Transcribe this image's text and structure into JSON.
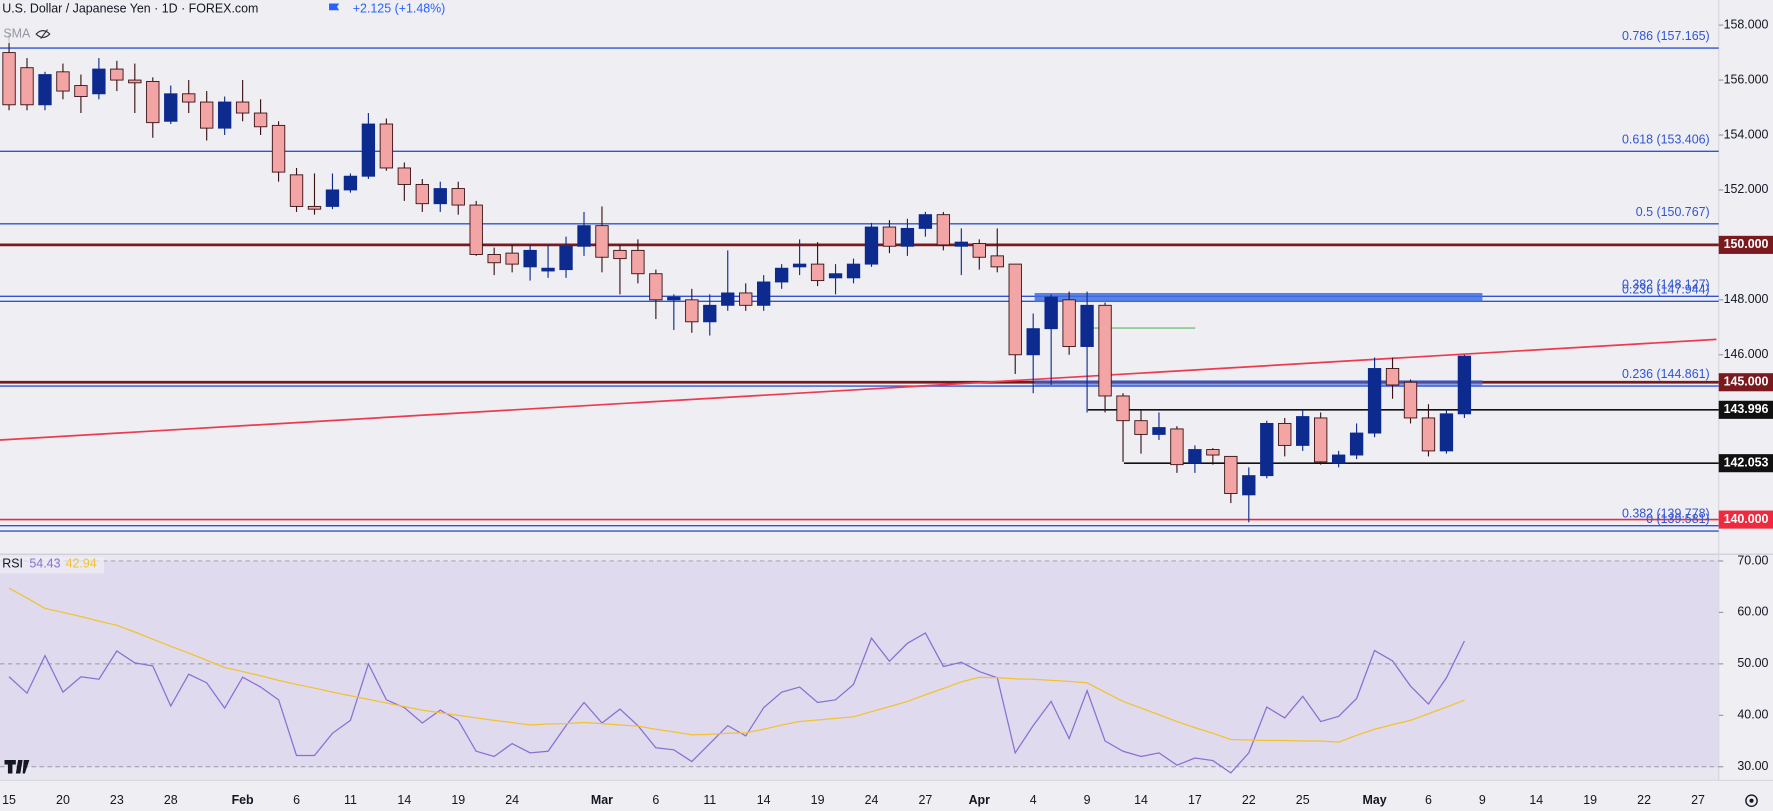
{
  "chart_data": [
    {
      "type": "candlestick",
      "title": "U.S. Dollar / Japanese Yen · 1D · FOREX.com",
      "change": "+2.125 (+1.48%)",
      "indicator": "SMA",
      "up_color": "#0d2b8e",
      "down_color": "#f3a5a5",
      "categories": [
        "15",
        null,
        null,
        "20",
        null,
        null,
        "23",
        null,
        null,
        "28",
        null,
        null,
        null,
        "Feb",
        null,
        null,
        "6",
        null,
        null,
        "11",
        null,
        null,
        "14",
        null,
        null,
        "19",
        null,
        null,
        "24",
        null,
        null,
        null,
        null,
        "Mar",
        null,
        null,
        "6",
        null,
        null,
        "11",
        null,
        null,
        "14",
        null,
        null,
        "19",
        null,
        null,
        "24",
        null,
        null,
        "27",
        null,
        null,
        "Apr",
        null,
        null,
        "4",
        null,
        null,
        "9",
        null,
        null,
        "14",
        null,
        null,
        "17",
        null,
        null,
        "22",
        null,
        null,
        "25",
        null,
        null,
        null,
        "May",
        null,
        null,
        "6",
        null,
        null,
        "9",
        null,
        null,
        "14",
        null,
        null,
        "19",
        null,
        null,
        "22",
        null,
        null,
        "27"
      ],
      "open": [
        157.0,
        156.45,
        155.1,
        156.3,
        155.8,
        155.5,
        156.4,
        156.0,
        155.95,
        154.5,
        155.5,
        155.2,
        154.25,
        155.2,
        154.8,
        154.35,
        152.55,
        151.4,
        151.4,
        152.0,
        152.5,
        154.4,
        152.8,
        152.2,
        151.5,
        152.05,
        151.45,
        149.65,
        149.7,
        149.2,
        149.05,
        149.1,
        149.95,
        150.7,
        149.8,
        149.8,
        148.95,
        148.0,
        148.0,
        147.2,
        147.8,
        148.25,
        147.8,
        148.65,
        149.2,
        149.3,
        148.8,
        148.8,
        149.3,
        150.65,
        149.95,
        150.6,
        151.1,
        149.95,
        150.05,
        149.6,
        149.3,
        146.0,
        146.95,
        148.0,
        146.3,
        147.8,
        144.5,
        143.6,
        143.1,
        143.3,
        142.05,
        142.55,
        142.3,
        140.9,
        141.6,
        143.5,
        142.7,
        143.7,
        142.05,
        142.35,
        143.15,
        145.5,
        145.0,
        143.7,
        142.5,
        143.85,
        null,
        null,
        null,
        null,
        null,
        null,
        null,
        null,
        null,
        null,
        null,
        null,
        null
      ],
      "high": [
        157.7,
        156.8,
        156.3,
        156.6,
        156.2,
        156.8,
        156.7,
        156.6,
        156.1,
        155.8,
        156.0,
        155.6,
        155.4,
        156.0,
        155.3,
        154.5,
        152.8,
        152.6,
        152.6,
        152.6,
        154.8,
        154.6,
        153.0,
        152.4,
        152.3,
        152.3,
        151.6,
        149.9,
        150.0,
        150.0,
        150.0,
        150.3,
        151.2,
        151.4,
        150.0,
        150.2,
        149.1,
        148.2,
        148.4,
        148.2,
        149.8,
        148.6,
        148.9,
        149.3,
        150.2,
        150.1,
        149.3,
        149.5,
        150.8,
        150.9,
        150.95,
        151.2,
        151.2,
        150.6,
        150.2,
        150.6,
        149.3,
        147.5,
        148.2,
        148.3,
        148.3,
        147.9,
        144.6,
        144.0,
        143.9,
        143.4,
        142.7,
        142.6,
        142.3,
        141.9,
        143.6,
        143.7,
        144.0,
        143.9,
        142.5,
        143.5,
        145.9,
        145.9,
        145.1,
        144.2,
        144.0,
        146.0,
        null,
        null,
        null,
        null,
        null,
        null,
        null,
        null,
        null,
        null,
        null,
        null,
        null
      ],
      "low": [
        154.9,
        154.9,
        154.9,
        155.3,
        154.8,
        155.3,
        155.6,
        154.8,
        153.9,
        154.4,
        154.8,
        153.8,
        154.0,
        154.5,
        154.0,
        152.3,
        151.2,
        151.1,
        151.3,
        151.9,
        152.4,
        152.7,
        151.6,
        151.2,
        151.2,
        151.1,
        149.6,
        148.9,
        149.0,
        148.7,
        148.8,
        148.8,
        149.6,
        149.0,
        148.2,
        148.6,
        147.3,
        146.9,
        146.8,
        146.7,
        147.6,
        147.6,
        147.6,
        148.4,
        148.9,
        148.5,
        148.2,
        148.6,
        149.2,
        149.7,
        149.6,
        150.3,
        149.8,
        148.9,
        149.1,
        149.0,
        145.3,
        144.6,
        144.9,
        146.0,
        143.9,
        143.9,
        142.1,
        142.4,
        142.9,
        141.7,
        141.7,
        142.0,
        140.6,
        139.9,
        141.5,
        142.3,
        142.5,
        142.0,
        141.9,
        142.2,
        143.0,
        144.4,
        143.5,
        142.3,
        142.4,
        143.7,
        null,
        null,
        null,
        null,
        null,
        null,
        null,
        null,
        null,
        null,
        null,
        null,
        null
      ],
      "close": [
        155.1,
        155.1,
        156.2,
        155.6,
        155.4,
        156.4,
        156.0,
        155.9,
        154.45,
        155.5,
        155.2,
        154.25,
        155.2,
        154.8,
        154.3,
        152.65,
        151.4,
        151.3,
        152.0,
        152.5,
        154.4,
        152.8,
        152.2,
        151.5,
        152.05,
        151.45,
        149.65,
        149.35,
        149.3,
        149.8,
        149.15,
        149.95,
        150.7,
        149.55,
        149.5,
        148.95,
        148.0,
        148.1,
        147.2,
        147.8,
        148.25,
        147.8,
        148.65,
        149.15,
        149.3,
        148.7,
        148.95,
        149.3,
        150.65,
        149.95,
        150.6,
        151.1,
        150.0,
        150.1,
        149.55,
        149.2,
        146.0,
        146.95,
        148.1,
        146.3,
        147.8,
        144.5,
        143.6,
        143.1,
        143.35,
        142.0,
        142.55,
        142.35,
        140.95,
        141.6,
        143.5,
        142.7,
        143.75,
        142.1,
        142.35,
        143.15,
        145.5,
        144.9,
        143.7,
        142.5,
        143.85,
        145.95,
        null,
        null,
        null,
        null,
        null,
        null,
        null,
        null,
        null,
        null,
        null,
        null,
        null
      ],
      "ylim": [
        138.74,
        158.91
      ],
      "yticks": [
        {
          "value": 158,
          "label": "158.000"
        },
        {
          "value": 156,
          "label": "156.000"
        },
        {
          "value": 154,
          "label": "154.000"
        },
        {
          "value": 152,
          "label": "152.000"
        },
        {
          "value": 148,
          "label": "148.000"
        },
        {
          "value": 146,
          "label": "146.000"
        }
      ],
      "fib_levels": [
        {
          "value": 157.165,
          "label": "0.786 (157.165)"
        },
        {
          "value": 153.406,
          "label": "0.618 (153.406)"
        },
        {
          "value": 150.767,
          "label": "0.5 (150.767)"
        },
        {
          "value": 148.127,
          "label": "0.382 (148.127)"
        },
        {
          "value": 147.944,
          "label": "0.236 (147.944)"
        },
        {
          "value": 144.861,
          "label": "0.236 (144.861)"
        },
        {
          "value": 139.581,
          "label": "0 (139.581)"
        },
        {
          "value": 139.778,
          "label": "0.382 (139.778)"
        }
      ],
      "fib_color": "#2f55d4",
      "levels": [
        {
          "value": 150,
          "label": "150.000",
          "color": "#7a1a1f"
        },
        {
          "value": 145,
          "label": "145.000",
          "color": "#7a1a1f"
        },
        {
          "value": 143.996,
          "label": "143.996",
          "color": "#111111"
        },
        {
          "value": 142.053,
          "label": "142.053",
          "color": "#111111"
        },
        {
          "value": 140,
          "label": "140.000",
          "color": "#f0293e"
        }
      ]
    },
    {
      "type": "line",
      "title": "RSI",
      "series": [
        {
          "color": "#8a6fd1",
          "values": [
            47.5,
            44.3,
            51.6,
            44.5,
            47.5,
            47.0,
            52.5,
            50.2,
            49.6,
            41.8,
            48.0,
            46.3,
            41.4,
            47.4,
            45.5,
            43.0,
            32.2,
            32.2,
            36.5,
            39.0,
            50.0,
            43.0,
            41.5,
            38.5,
            41.0,
            39.0,
            33.0,
            32.0,
            34.5,
            32.7,
            33.0,
            38.0,
            42.5,
            38.5,
            41.2,
            38.0,
            33.7,
            33.3,
            31.0,
            34.5,
            38.0,
            36.0,
            41.5,
            44.5,
            45.5,
            42.5,
            43.0,
            46.0,
            55.0,
            50.5,
            54.0,
            56.0,
            49.5,
            50.3,
            48.5,
            47.3,
            32.7,
            38.0,
            42.7,
            35.5,
            44.8,
            35.0,
            33.0,
            32.0,
            32.7,
            30.3,
            31.7,
            31.2,
            28.8,
            32.7,
            41.6,
            39.5,
            43.7,
            38.8,
            39.8,
            43.3,
            52.6,
            50.6,
            45.7,
            42.2,
            47.3,
            54.43,
            null,
            null,
            null,
            null,
            null,
            null,
            null,
            null,
            null,
            null,
            null,
            null,
            null
          ]
        },
        {
          "color": "#f2c230",
          "values": [
            64.7,
            62.8,
            60.8,
            60.0,
            59.2,
            58.3,
            57.5,
            56.2,
            54.8,
            53.4,
            52.1,
            50.7,
            49.3,
            48.5,
            47.7,
            46.8,
            46.0,
            45.3,
            44.5,
            43.8,
            43.1,
            42.4,
            41.7,
            41.0,
            40.5,
            40.0,
            39.5,
            39.0,
            38.6,
            38.1,
            38.3,
            38.4,
            38.6,
            38.4,
            38.1,
            37.9,
            37.3,
            36.8,
            36.2,
            36.3,
            36.5,
            36.6,
            37.3,
            38.1,
            38.8,
            39.1,
            39.4,
            39.7,
            40.7,
            41.7,
            42.7,
            44.0,
            45.2,
            46.5,
            47.4,
            47.3,
            47.1,
            47.0,
            46.8,
            46.6,
            46.3,
            44.5,
            42.7,
            41.4,
            40.1,
            38.8,
            37.6,
            36.5,
            35.3,
            35.2,
            35.1,
            35.1,
            35.0,
            35.0,
            34.8,
            36.1,
            37.3,
            38.2,
            39.0,
            40.3,
            41.6,
            42.94,
            null,
            null,
            null,
            null,
            null,
            null,
            null,
            null,
            null,
            null,
            null,
            null,
            null
          ]
        }
      ],
      "ylim": [
        27.36,
        71.32
      ],
      "yticks": [
        {
          "value": 70,
          "label": "70.00"
        },
        {
          "value": 60,
          "label": "60.00"
        },
        {
          "value": 50,
          "label": "50.00"
        },
        {
          "value": 40,
          "label": "40.00"
        },
        {
          "value": 30,
          "label": "30.00"
        }
      ],
      "guide_lines": [
        70,
        50,
        30
      ]
    }
  ]
}
